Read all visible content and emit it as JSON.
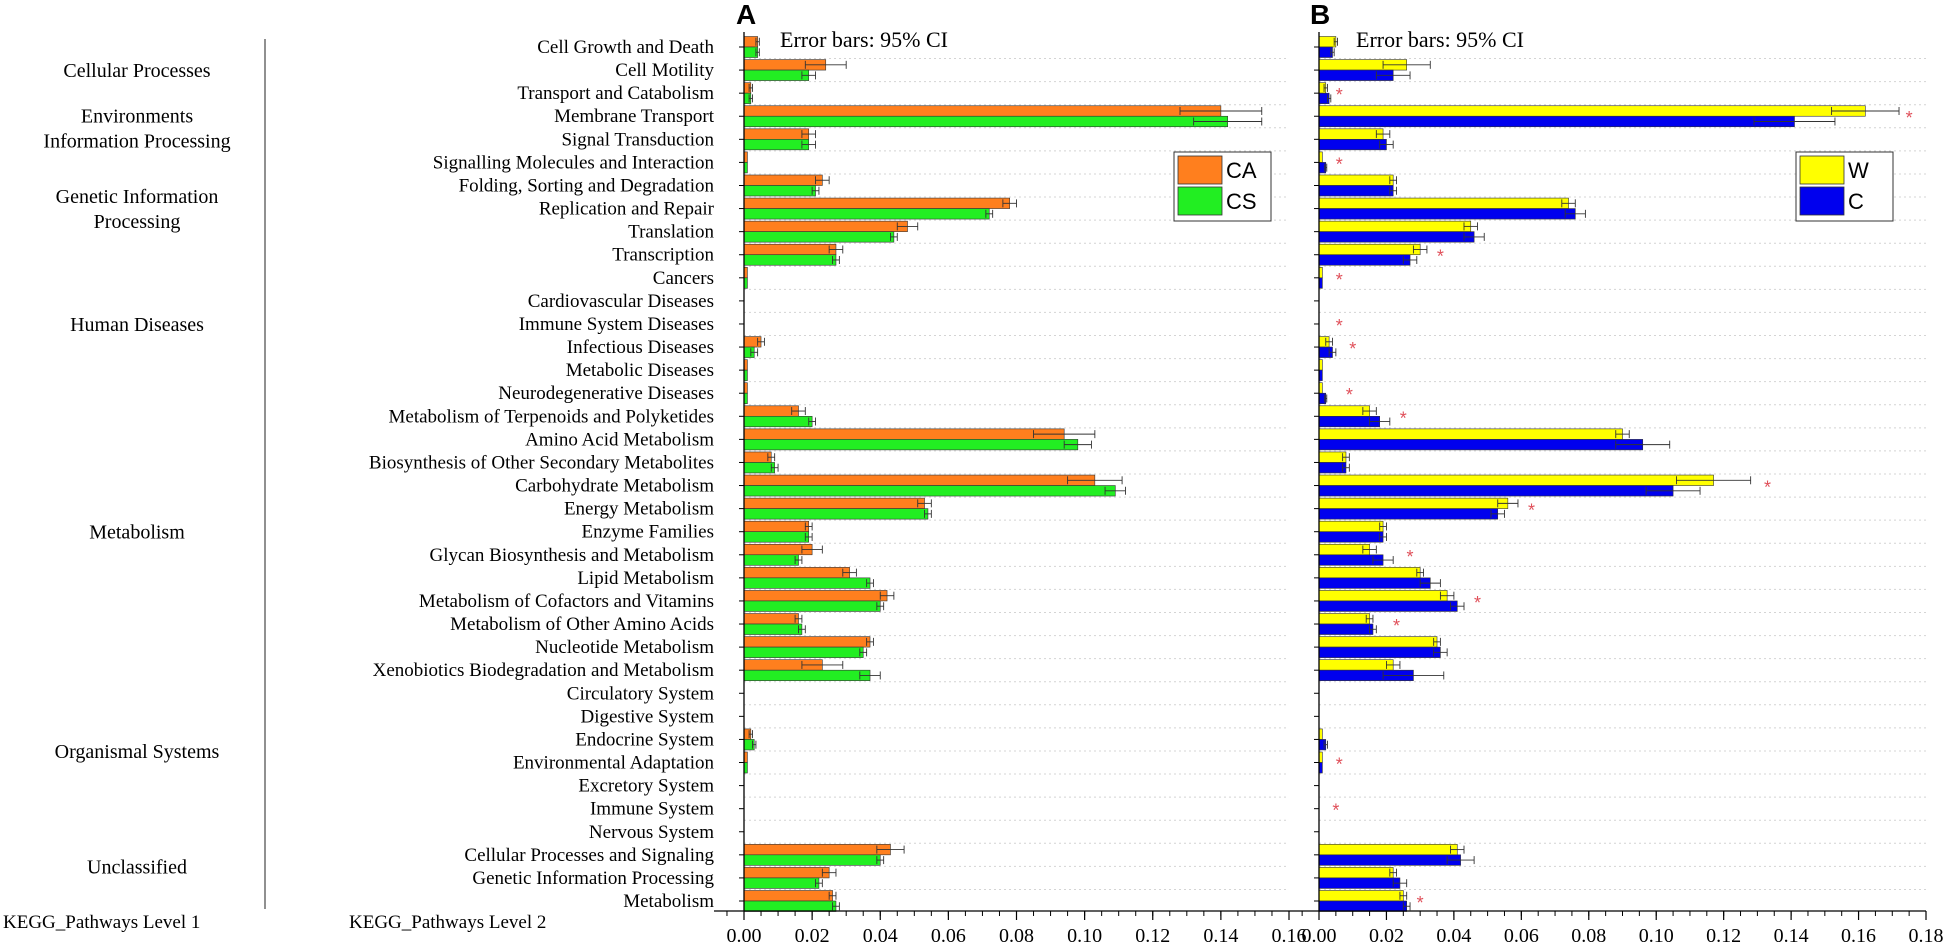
{
  "chart_data": {
    "type": "bar",
    "orientation": "horizontal",
    "level1_axis_label": "KEGG_Pathways Level 1",
    "level2_axis_label": "KEGG_Pathways Level 2",
    "level1_groups": [
      {
        "label": "Cellular  Processes",
        "lines": [
          "Cellular  Processes"
        ],
        "start": 0,
        "end": 2
      },
      {
        "label": "Environments Information Processing",
        "lines": [
          "Environments",
          "Information Processing"
        ],
        "start": 2,
        "end": 5
      },
      {
        "label": "Genetic Information Processing",
        "lines": [
          "Genetic Information",
          "Processing"
        ],
        "start": 5,
        "end": 9
      },
      {
        "label": "Human Diseases",
        "lines": [
          "Human Diseases"
        ],
        "start": 9,
        "end": 15
      },
      {
        "label": "Metabolism",
        "lines": [
          "Metabolism"
        ],
        "start": 15,
        "end": 27
      },
      {
        "label": "Organismal Systems",
        "lines": [
          "Organismal Systems"
        ],
        "start": 27,
        "end": 34
      },
      {
        "label": "Unclassified",
        "lines": [
          "Unclassified"
        ],
        "start": 34,
        "end": 37
      }
    ],
    "categories": [
      "Cell Growth and Death",
      "Cell Motility",
      "Transport and Catabolism",
      "Membrane Transport",
      "Signal Transduction",
      "Signalling Molecules and Interaction",
      "Folding, Sorting and Degradation",
      "Replication and Repair",
      "Translation",
      "Transcription",
      "Cancers",
      "Cardiovascular Diseases",
      "Immune System Diseases",
      "Infectious Diseases",
      "Metabolic Diseases",
      "Neurodegenerative Diseases",
      "Metabolism of Terpenoids and Polyketides",
      "Amino Acid Metabolism",
      "Biosynthesis of Other Secondary Metabolites",
      "Carbohydrate Metabolism",
      "Energy Metabolism",
      "Enzyme Families",
      "Glycan Biosynthesis and Metabolism",
      "Lipid Metabolism",
      "Metabolism of Cofactors and Vitamins",
      "Metabolism of Other Amino Acids",
      "Nucleotide Metabolism",
      "Xenobiotics Biodegradation and Metabolism",
      "Circulatory System",
      "Digestive System",
      "Endocrine System",
      "Environmental Adaptation",
      "Excretory System",
      "Immune System",
      "Nervous System",
      "Cellular Processes and Signaling",
      "Genetic Information Processing",
      "Metabolism"
    ],
    "panels": [
      {
        "label": "A",
        "subtitle": "Error bars: 95% CI",
        "xlim": [
          0,
          0.16
        ],
        "ticks": [
          0,
          0.02,
          0.04,
          0.06,
          0.08,
          0.1,
          0.12,
          0.14,
          0.16
        ],
        "tick_labels": [
          "0.00",
          "0.02",
          "0.04",
          "0.06",
          "0.08",
          "0.10",
          "0.12",
          "0.14",
          "0.16"
        ],
        "legend_position": "top-right",
        "series": [
          {
            "name": "CA",
            "color": "#ff7f1e",
            "values": [
              0.004,
              0.024,
              0.002,
              0.14,
              0.019,
              0.001,
              0.023,
              0.078,
              0.048,
              0.027,
              0.001,
              0.0,
              0.0,
              0.005,
              0.001,
              0.001,
              0.016,
              0.094,
              0.008,
              0.103,
              0.053,
              0.019,
              0.02,
              0.031,
              0.042,
              0.016,
              0.037,
              0.023,
              0.0,
              0.0,
              0.002,
              0.001,
              0.0,
              0.0,
              0.0,
              0.043,
              0.025,
              0.026
            ],
            "err": [
              0.0005,
              0.006,
              0.0005,
              0.012,
              0.002,
              0.0003,
              0.002,
              0.002,
              0.003,
              0.002,
              0.0003,
              0.0001,
              0.0001,
              0.001,
              0.0003,
              0.0003,
              0.002,
              0.009,
              0.001,
              0.008,
              0.002,
              0.001,
              0.003,
              0.002,
              0.002,
              0.001,
              0.001,
              0.006,
              0.0001,
              0.0001,
              0.0005,
              0.0003,
              0.0001,
              0.0001,
              0.0001,
              0.004,
              0.002,
              0.001
            ]
          },
          {
            "name": "CS",
            "color": "#22ee22",
            "values": [
              0.004,
              0.019,
              0.002,
              0.142,
              0.019,
              0.001,
              0.021,
              0.072,
              0.044,
              0.027,
              0.001,
              0.0,
              0.0,
              0.003,
              0.001,
              0.001,
              0.02,
              0.098,
              0.009,
              0.109,
              0.054,
              0.019,
              0.016,
              0.037,
              0.04,
              0.017,
              0.035,
              0.037,
              0.0,
              0.0,
              0.003,
              0.001,
              0.0,
              0.0,
              0.0,
              0.04,
              0.022,
              0.027
            ],
            "err": [
              0.0005,
              0.002,
              0.0005,
              0.01,
              0.002,
              0.0003,
              0.001,
              0.001,
              0.001,
              0.001,
              0.0003,
              0.0001,
              0.0001,
              0.001,
              0.0003,
              0.0003,
              0.001,
              0.004,
              0.001,
              0.003,
              0.001,
              0.001,
              0.001,
              0.001,
              0.001,
              0.001,
              0.001,
              0.003,
              0.0001,
              0.0001,
              0.0005,
              0.0003,
              0.0001,
              0.0001,
              0.0001,
              0.001,
              0.001,
              0.001
            ]
          }
        ],
        "significance": []
      },
      {
        "label": "B",
        "subtitle": "Error bars: 95% CI",
        "xlim": [
          0,
          0.18
        ],
        "ticks": [
          0,
          0.02,
          0.04,
          0.06,
          0.08,
          0.1,
          0.12,
          0.14,
          0.16,
          0.18
        ],
        "tick_labels": [
          "0.00",
          "0.02",
          "0.04",
          "0.06",
          "0.08",
          "0.10",
          "0.12",
          "0.14",
          "0.16",
          "0.18"
        ],
        "legend_position": "top-right",
        "series": [
          {
            "name": "W",
            "color": "#ffff00",
            "values": [
              0.005,
              0.026,
              0.002,
              0.162,
              0.019,
              0.001,
              0.022,
              0.074,
              0.045,
              0.03,
              0.001,
              0.0,
              0.0,
              0.003,
              0.001,
              0.001,
              0.015,
              0.09,
              0.008,
              0.117,
              0.056,
              0.019,
              0.015,
              0.03,
              0.038,
              0.015,
              0.035,
              0.022,
              0.0,
              0.0,
              0.001,
              0.001,
              0.0,
              0.0,
              0.0,
              0.041,
              0.022,
              0.025
            ],
            "err": [
              0.0005,
              0.007,
              0.0005,
              0.01,
              0.002,
              0.0003,
              0.001,
              0.002,
              0.002,
              0.002,
              0.0003,
              0.0001,
              0.0001,
              0.001,
              0.0003,
              0.0003,
              0.002,
              0.002,
              0.001,
              0.011,
              0.003,
              0.001,
              0.002,
              0.001,
              0.002,
              0.001,
              0.001,
              0.002,
              0.0001,
              0.0001,
              0.0003,
              0.0003,
              0.0001,
              0.0001,
              0.0001,
              0.002,
              0.001,
              0.001
            ]
          },
          {
            "name": "C",
            "color": "#0000ee",
            "values": [
              0.004,
              0.022,
              0.003,
              0.141,
              0.02,
              0.002,
              0.022,
              0.076,
              0.046,
              0.027,
              0.001,
              0.0,
              0.0,
              0.004,
              0.001,
              0.002,
              0.018,
              0.096,
              0.008,
              0.105,
              0.053,
              0.019,
              0.019,
              0.033,
              0.041,
              0.016,
              0.036,
              0.028,
              0.0,
              0.0,
              0.002,
              0.001,
              0.0,
              0.0,
              0.0,
              0.042,
              0.024,
              0.026
            ],
            "err": [
              0.0005,
              0.005,
              0.0005,
              0.012,
              0.002,
              0.0003,
              0.001,
              0.003,
              0.003,
              0.002,
              0.0003,
              0.0001,
              0.0001,
              0.001,
              0.0003,
              0.0003,
              0.003,
              0.008,
              0.001,
              0.008,
              0.002,
              0.001,
              0.003,
              0.003,
              0.002,
              0.001,
              0.002,
              0.009,
              0.0001,
              0.0001,
              0.0005,
              0.0003,
              0.0001,
              0.0001,
              0.0001,
              0.004,
              0.002,
              0.001
            ]
          }
        ],
        "significance": [
          {
            "index": 2,
            "value": 0.006
          },
          {
            "index": 3,
            "value": 0.175
          },
          {
            "index": 5,
            "value": 0.006
          },
          {
            "index": 9,
            "value": 0.036
          },
          {
            "index": 10,
            "value": 0.006
          },
          {
            "index": 12,
            "value": 0.006
          },
          {
            "index": 13,
            "value": 0.01
          },
          {
            "index": 15,
            "value": 0.009
          },
          {
            "index": 16,
            "value": 0.025
          },
          {
            "index": 19,
            "value": 0.133
          },
          {
            "index": 20,
            "value": 0.063
          },
          {
            "index": 22,
            "value": 0.027
          },
          {
            "index": 24,
            "value": 0.047
          },
          {
            "index": 25,
            "value": 0.023
          },
          {
            "index": 31,
            "value": 0.006
          },
          {
            "index": 33,
            "value": 0.005
          },
          {
            "index": 37,
            "value": 0.03
          }
        ],
        "significance_marker": "*"
      }
    ]
  }
}
